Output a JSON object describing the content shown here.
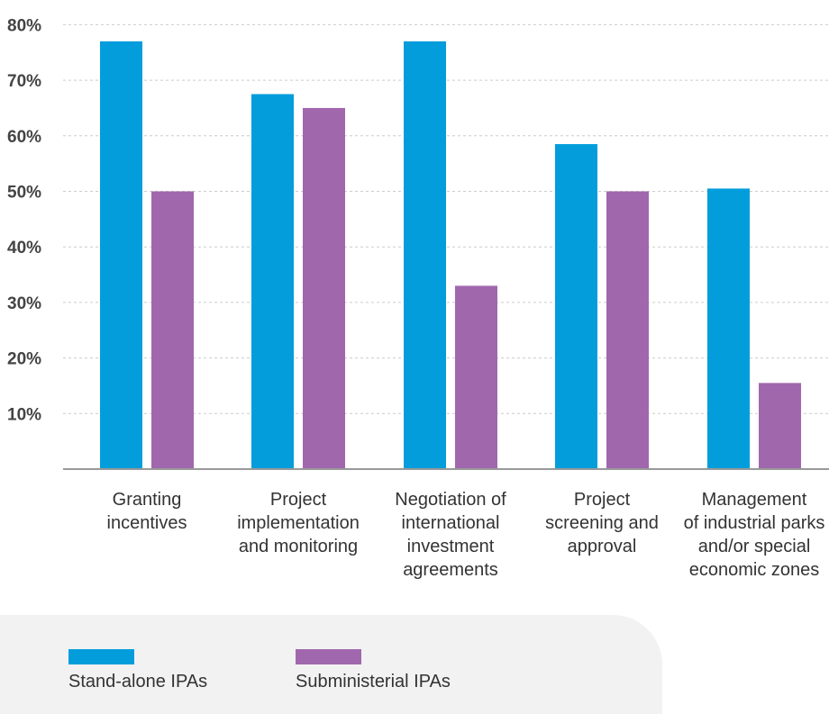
{
  "colors": {
    "standalone": "#039ddc",
    "subministerial": "#a167ad",
    "axis": "#999999",
    "grid": "#cccccc",
    "tick_text": "#444444",
    "category_text": "#333333",
    "legend_bg": "#f2f2f2"
  },
  "chart_data": {
    "type": "bar",
    "categories": [
      [
        "Granting",
        "incentives"
      ],
      [
        "Project",
        "implementation",
        "and monitoring"
      ],
      [
        "Negotiation of",
        "international",
        "investment",
        "agreements"
      ],
      [
        "Project",
        "screening and",
        "approval"
      ],
      [
        "Management",
        "of industrial parks",
        "and/or special",
        "economic zones"
      ]
    ],
    "series": [
      {
        "name": "Stand-alone IPAs",
        "values": [
          77,
          67.5,
          77,
          58.5,
          50.5
        ]
      },
      {
        "name": "Subministerial IPAs",
        "values": [
          50,
          65,
          33,
          50,
          15.5
        ]
      }
    ],
    "ylim": [
      0,
      82
    ],
    "y_ticks": [
      10,
      20,
      30,
      40,
      50,
      60,
      70,
      80
    ],
    "y_tick_labels": [
      "10%",
      "20%",
      "30%",
      "40%",
      "50%",
      "60%",
      "70%",
      "80%"
    ],
    "grid": true,
    "legend": "bottom-left"
  }
}
